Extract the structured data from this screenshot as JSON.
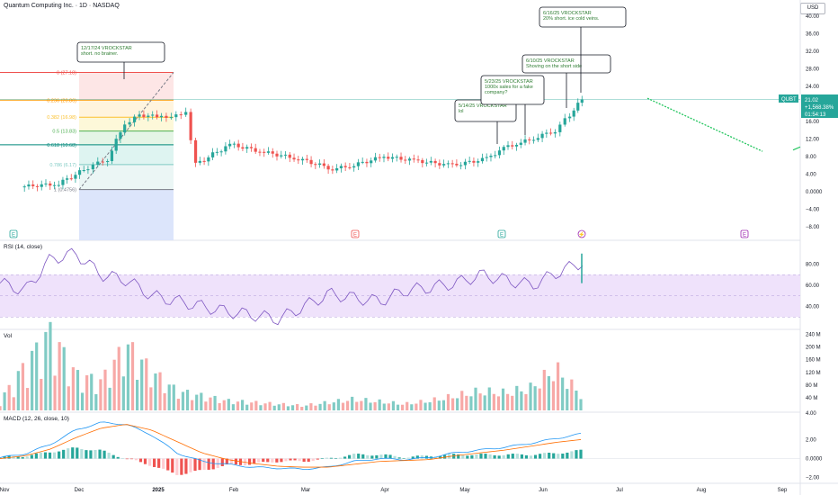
{
  "header": {
    "symbol_title": "Quantum Computing Inc. · 1D · NASDAQ",
    "currency_button": "USD"
  },
  "price_tag": {
    "ticker": "QUBT",
    "price": "21.02",
    "change": "+1,568.38%",
    "countdown": "01:54:13"
  },
  "colors": {
    "up": "#26a69a",
    "down": "#ef5350",
    "rsi_line": "#7e57c2",
    "rsi_band": "#efe2fb",
    "macd_line": "#2196f3",
    "signal_line": "#ff6d00",
    "note_text": "#2e7d32",
    "projection": "#22c55e"
  },
  "axis": {
    "price_ticks": [
      "40.00",
      "36.00",
      "32.00",
      "28.00",
      "24.00",
      "20.00",
      "16.00",
      "12.00",
      "8.00",
      "4.00",
      "0.0000",
      "−4.00",
      "−8.00"
    ],
    "rsi_ticks": [
      "80.00",
      "60.00",
      "40.00"
    ],
    "vol_ticks": [
      "240 M",
      "200 M",
      "160 M",
      "120 M",
      "80 M",
      "40 M",
      "4.00"
    ],
    "macd_ticks": [
      "2.00",
      "0.0000",
      "−2.00"
    ],
    "time_ticks": [
      "Nov",
      "Dec",
      "2025",
      "Feb",
      "Mar",
      "Apr",
      "May",
      "Jun",
      "Jul",
      "Aug",
      "Sep"
    ]
  },
  "panes": {
    "rsi_label": "RSI (14, close)",
    "vol_label": "Vol",
    "macd_label": "MACD (12, 26, close, 10)"
  },
  "fib_levels": [
    {
      "label": "0 (27.18)",
      "price": 27.18,
      "color": "#ef5350"
    },
    {
      "label": "0.236 (20.86)",
      "price": 20.86,
      "color": "#ff9800"
    },
    {
      "label": "0.382 (16.98)",
      "price": 16.98,
      "color": "#fbc02d"
    },
    {
      "label": "0.5 (13.83)",
      "price": 13.83,
      "color": "#4caf50"
    },
    {
      "label": "0.618 (10.68)",
      "price": 10.68,
      "color": "#00897b"
    },
    {
      "label": "0.786 (6.17)",
      "price": 6.17,
      "color": "#80cbc4"
    },
    {
      "label": "1 (0.4756)",
      "price": 0.4756,
      "color": "#787b86"
    }
  ],
  "event_markers": [
    "E",
    "E",
    "E",
    "⚡",
    "E"
  ],
  "notes": [
    {
      "lines": [
        "12/17/24 VROCKSTAR",
        "short. no brainer."
      ]
    },
    {
      "lines": [
        "5/14/25 VROCKSTAR",
        "lol"
      ]
    },
    {
      "lines": [
        "5/23/25 VROCKSTAR",
        "1000x sales for a fake",
        "company?"
      ]
    },
    {
      "lines": [
        "6/10/25 VROCKSTAR",
        "Shoving on the short side"
      ]
    },
    {
      "lines": [
        "6/16/25 VROCKSTAR",
        "20% short. ice cold veins."
      ]
    }
  ],
  "chart_data": [
    {
      "type": "candlestick",
      "title": "Quantum Computing Inc. · 1D · NASDAQ",
      "ylim": [
        -10,
        42
      ],
      "x_range": [
        "2024-11",
        "2025-09"
      ],
      "close_series_approx": {
        "dates": [
          "2024-11-01",
          "2024-11-15",
          "2024-11-27",
          "2024-12-05",
          "2024-12-12",
          "2024-12-18",
          "2024-12-27",
          "2025-01-06",
          "2025-01-10",
          "2025-01-24",
          "2025-02-07",
          "2025-02-21",
          "2025-03-07",
          "2025-03-14",
          "2025-03-28",
          "2025-04-11",
          "2025-04-25",
          "2025-05-09",
          "2025-05-16",
          "2025-05-23",
          "2025-05-30",
          "2025-06-06",
          "2025-06-12",
          "2025-06-17"
        ],
        "close": [
          1.2,
          1.8,
          5.5,
          7.5,
          15.5,
          17.5,
          17.0,
          17.5,
          6.2,
          10.8,
          9.0,
          7.5,
          5.2,
          5.8,
          8.0,
          7.0,
          6.0,
          7.5,
          10.0,
          11.2,
          12.5,
          14.0,
          17.5,
          21.02
        ]
      },
      "last_price": 21.02,
      "projection_note": "dashed downward green line after Jul toward ~9"
    },
    {
      "type": "line",
      "name": "RSI (14, close)",
      "ylim": [
        20,
        100
      ],
      "band": [
        30,
        70
      ],
      "values_approx": [
        62,
        55,
        85,
        90,
        70,
        65,
        50,
        45,
        40,
        35,
        32,
        28,
        40,
        52,
        48,
        45,
        55,
        58,
        62,
        70,
        65,
        60,
        72,
        82
      ]
    },
    {
      "type": "bar",
      "name": "Vol",
      "ylim": [
        0,
        240
      ],
      "unit": "M",
      "values_approx": [
        30,
        140,
        240,
        110,
        90,
        200,
        120,
        60,
        45,
        30,
        25,
        20,
        15,
        25,
        35,
        28,
        20,
        30,
        45,
        60,
        55,
        70,
        130,
        50
      ]
    },
    {
      "type": "bar+line",
      "name": "MACD (12, 26, close, 10)",
      "ylim": [
        -2.5,
        4.5
      ],
      "macd_approx": [
        0.1,
        0.5,
        1.5,
        3.0,
        3.8,
        3.6,
        2.5,
        0.6,
        -0.3,
        -0.6,
        -0.9,
        -1.0,
        -1.1,
        -0.9,
        -0.3,
        0.0,
        -0.1,
        0.1,
        0.6,
        0.9,
        1.2,
        1.6,
        2.1,
        2.6
      ],
      "signal_approx": [
        0.0,
        0.3,
        1.0,
        2.2,
        3.2,
        3.6,
        3.0,
        1.8,
        0.6,
        -0.1,
        -0.5,
        -0.8,
        -0.9,
        -0.9,
        -0.6,
        -0.3,
        -0.2,
        -0.1,
        0.3,
        0.6,
        0.9,
        1.3,
        1.7,
        2.0
      ]
    }
  ]
}
